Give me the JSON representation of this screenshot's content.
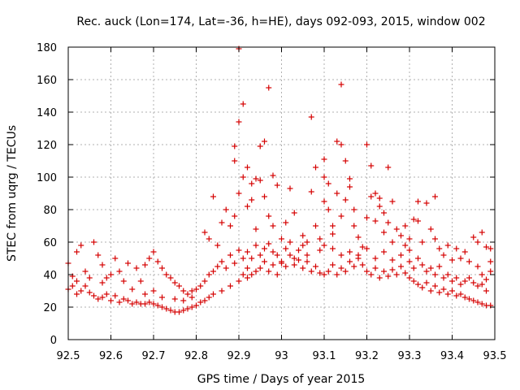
{
  "chart_data": {
    "type": "scatter",
    "title": "Rec. auck (Lon=174, Lat=-36, h=HE), days 092-093, 2015, window 002",
    "xlabel": "GPS time / Days of year 2015",
    "ylabel": "STEC from uqrg / TECUs",
    "xlim": [
      92.5,
      93.5
    ],
    "ylim": [
      0,
      180
    ],
    "xticks": [
      "92.5",
      "92.6",
      "92.7",
      "92.8",
      "92.9",
      "93",
      "93.1",
      "93.2",
      "93.3",
      "93.4",
      "93.5"
    ],
    "yticks": [
      "0",
      "20",
      "40",
      "60",
      "80",
      "100",
      "120",
      "140",
      "160",
      "180"
    ],
    "grid": true,
    "marker": "+",
    "color": "#d40000",
    "series": [
      {
        "name": "STEC",
        "points": [
          [
            92.5,
            47
          ],
          [
            92.51,
            39
          ],
          [
            92.52,
            54
          ],
          [
            92.53,
            58
          ],
          [
            92.54,
            42
          ],
          [
            92.56,
            60
          ],
          [
            92.57,
            52
          ],
          [
            92.58,
            46
          ],
          [
            92.59,
            38
          ],
          [
            92.61,
            50
          ],
          [
            92.62,
            42
          ],
          [
            92.64,
            47
          ],
          [
            92.66,
            44
          ],
          [
            92.67,
            36
          ],
          [
            92.68,
            46
          ],
          [
            92.69,
            50
          ],
          [
            92.7,
            54
          ],
          [
            92.71,
            48
          ],
          [
            92.72,
            44
          ],
          [
            92.73,
            40
          ],
          [
            92.74,
            38
          ],
          [
            92.75,
            35
          ],
          [
            92.76,
            33
          ],
          [
            92.77,
            30
          ],
          [
            92.78,
            28
          ],
          [
            92.79,
            30
          ],
          [
            92.8,
            31
          ],
          [
            92.5,
            31
          ],
          [
            92.51,
            33
          ],
          [
            92.52,
            28
          ],
          [
            92.53,
            30
          ],
          [
            92.54,
            33
          ],
          [
            92.55,
            29
          ],
          [
            92.56,
            27
          ],
          [
            92.57,
            25
          ],
          [
            92.58,
            26
          ],
          [
            92.59,
            28
          ],
          [
            92.6,
            24
          ],
          [
            92.61,
            27
          ],
          [
            92.62,
            23
          ],
          [
            92.63,
            25
          ],
          [
            92.64,
            24
          ],
          [
            92.65,
            22
          ],
          [
            92.66,
            23
          ],
          [
            92.67,
            22
          ],
          [
            92.68,
            22
          ],
          [
            92.69,
            23
          ],
          [
            92.7,
            22
          ],
          [
            92.71,
            21
          ],
          [
            92.72,
            20
          ],
          [
            92.73,
            19
          ],
          [
            92.74,
            18
          ],
          [
            92.75,
            17
          ],
          [
            92.76,
            17
          ],
          [
            92.77,
            18
          ],
          [
            92.78,
            19
          ],
          [
            92.79,
            20
          ],
          [
            92.8,
            21
          ],
          [
            92.81,
            23
          ],
          [
            92.82,
            24
          ],
          [
            92.83,
            26
          ],
          [
            92.84,
            28
          ],
          [
            92.86,
            30
          ],
          [
            92.88,
            33
          ],
          [
            92.9,
            36
          ],
          [
            92.92,
            38
          ],
          [
            92.52,
            36
          ],
          [
            92.55,
            38
          ],
          [
            92.58,
            35
          ],
          [
            92.6,
            40
          ],
          [
            92.63,
            36
          ],
          [
            92.65,
            31
          ],
          [
            92.68,
            28
          ],
          [
            92.7,
            30
          ],
          [
            92.72,
            26
          ],
          [
            92.75,
            25
          ],
          [
            92.77,
            24
          ],
          [
            92.79,
            26
          ],
          [
            92.81,
            33
          ],
          [
            92.82,
            36
          ],
          [
            92.83,
            40
          ],
          [
            92.84,
            42
          ],
          [
            92.85,
            45
          ],
          [
            92.86,
            48
          ],
          [
            92.87,
            44
          ],
          [
            92.88,
            52
          ],
          [
            92.89,
            47
          ],
          [
            92.9,
            55
          ],
          [
            92.91,
            50
          ],
          [
            92.92,
            54
          ],
          [
            92.93,
            50
          ],
          [
            92.94,
            58
          ],
          [
            92.95,
            52
          ],
          [
            92.96,
            56
          ],
          [
            92.97,
            59
          ],
          [
            92.98,
            54
          ],
          [
            92.82,
            66
          ],
          [
            92.83,
            62
          ],
          [
            92.84,
            88
          ],
          [
            92.85,
            58
          ],
          [
            92.86,
            72
          ],
          [
            92.87,
            80
          ],
          [
            92.88,
            70
          ],
          [
            92.89,
            76
          ],
          [
            92.89,
            119
          ],
          [
            92.89,
            110
          ],
          [
            92.9,
            134
          ],
          [
            92.9,
            179
          ],
          [
            92.9,
            90
          ],
          [
            92.91,
            100
          ],
          [
            92.91,
            145
          ],
          [
            92.92,
            82
          ],
          [
            92.92,
            106
          ],
          [
            92.93,
            86
          ],
          [
            92.93,
            96
          ],
          [
            92.94,
            99
          ],
          [
            92.94,
            68
          ],
          [
            92.95,
            98
          ],
          [
            92.95,
            119
          ],
          [
            92.96,
            122
          ],
          [
            92.96,
            88
          ],
          [
            92.97,
            155
          ],
          [
            92.97,
            76
          ],
          [
            92.98,
            101
          ],
          [
            92.98,
            70
          ],
          [
            92.99,
            95
          ],
          [
            92.99,
            52
          ],
          [
            93.0,
            62
          ],
          [
            93.0,
            48
          ],
          [
            93.01,
            72
          ],
          [
            93.01,
            56
          ],
          [
            93.02,
            93
          ],
          [
            93.02,
            60
          ],
          [
            93.03,
            78
          ],
          [
            93.03,
            50
          ],
          [
            93.04,
            55
          ],
          [
            93.05,
            64
          ],
          [
            93.05,
            58
          ],
          [
            93.06,
            60
          ],
          [
            93.06,
            52
          ],
          [
            93.07,
            137
          ],
          [
            93.07,
            91
          ],
          [
            93.08,
            106
          ],
          [
            93.08,
            70
          ],
          [
            93.09,
            62
          ],
          [
            93.09,
            55
          ],
          [
            93.1,
            111
          ],
          [
            93.1,
            100
          ],
          [
            93.1,
            85
          ],
          [
            93.11,
            80
          ],
          [
            93.11,
            96
          ],
          [
            93.12,
            70
          ],
          [
            93.12,
            65
          ],
          [
            93.13,
            122
          ],
          [
            93.13,
            90
          ],
          [
            93.14,
            157
          ],
          [
            93.14,
            120
          ],
          [
            93.14,
            76
          ],
          [
            93.15,
            86
          ],
          [
            93.15,
            110
          ],
          [
            93.16,
            99
          ],
          [
            93.16,
            94
          ],
          [
            93.17,
            80
          ],
          [
            93.17,
            70
          ],
          [
            93.18,
            63
          ],
          [
            93.19,
            57
          ],
          [
            93.2,
            120
          ],
          [
            93.2,
            75
          ],
          [
            93.21,
            88
          ],
          [
            93.21,
            107
          ],
          [
            93.22,
            90
          ],
          [
            93.22,
            73
          ],
          [
            93.23,
            87
          ],
          [
            93.23,
            82
          ],
          [
            93.24,
            78
          ],
          [
            93.24,
            66
          ],
          [
            93.25,
            106
          ],
          [
            93.25,
            72
          ],
          [
            93.26,
            85
          ],
          [
            93.26,
            60
          ],
          [
            93.27,
            68
          ],
          [
            93.28,
            64
          ],
          [
            93.29,
            70
          ],
          [
            93.29,
            58
          ],
          [
            93.3,
            62
          ],
          [
            93.3,
            55
          ],
          [
            93.31,
            74
          ],
          [
            93.32,
            85
          ],
          [
            93.32,
            73
          ],
          [
            93.33,
            60
          ],
          [
            93.34,
            84
          ],
          [
            93.35,
            68
          ],
          [
            93.36,
            88
          ],
          [
            93.36,
            62
          ],
          [
            93.37,
            56
          ],
          [
            93.38,
            52
          ],
          [
            93.39,
            58
          ],
          [
            93.4,
            49
          ],
          [
            93.41,
            56
          ],
          [
            93.42,
            50
          ],
          [
            93.43,
            54
          ],
          [
            93.44,
            48
          ],
          [
            93.45,
            63
          ],
          [
            93.46,
            60
          ],
          [
            93.47,
            66
          ],
          [
            93.48,
            57
          ],
          [
            93.0,
            47
          ],
          [
            93.01,
            45
          ],
          [
            93.02,
            52
          ],
          [
            93.03,
            46
          ],
          [
            93.04,
            49
          ],
          [
            93.05,
            44
          ],
          [
            93.06,
            48
          ],
          [
            93.07,
            42
          ],
          [
            93.08,
            45
          ],
          [
            93.09,
            41
          ],
          [
            93.1,
            40
          ],
          [
            93.11,
            42
          ],
          [
            93.12,
            46
          ],
          [
            93.13,
            40
          ],
          [
            93.14,
            44
          ],
          [
            93.15,
            42
          ],
          [
            93.16,
            48
          ],
          [
            93.17,
            45
          ],
          [
            93.18,
            50
          ],
          [
            93.19,
            46
          ],
          [
            93.2,
            42
          ],
          [
            93.21,
            40
          ],
          [
            93.22,
            44
          ],
          [
            93.23,
            38
          ],
          [
            93.24,
            42
          ],
          [
            93.25,
            39
          ],
          [
            93.26,
            43
          ],
          [
            93.27,
            40
          ],
          [
            93.28,
            45
          ],
          [
            93.29,
            41
          ],
          [
            93.3,
            38
          ],
          [
            93.31,
            36
          ],
          [
            93.32,
            34
          ],
          [
            93.33,
            32
          ],
          [
            93.34,
            35
          ],
          [
            93.35,
            30
          ],
          [
            93.36,
            33
          ],
          [
            93.37,
            29
          ],
          [
            93.38,
            31
          ],
          [
            93.39,
            28
          ],
          [
            93.4,
            30
          ],
          [
            93.41,
            27
          ],
          [
            93.42,
            28
          ],
          [
            93.43,
            26
          ],
          [
            93.44,
            25
          ],
          [
            93.45,
            24
          ],
          [
            93.46,
            23
          ],
          [
            93.47,
            22
          ],
          [
            93.48,
            21
          ],
          [
            93.49,
            21
          ],
          [
            93.3,
            48
          ],
          [
            93.31,
            44
          ],
          [
            93.32,
            50
          ],
          [
            93.33,
            46
          ],
          [
            93.34,
            42
          ],
          [
            93.35,
            44
          ],
          [
            93.36,
            40
          ],
          [
            93.37,
            45
          ],
          [
            93.38,
            38
          ],
          [
            93.39,
            40
          ],
          [
            93.4,
            36
          ],
          [
            93.41,
            38
          ],
          [
            93.42,
            34
          ],
          [
            93.43,
            36
          ],
          [
            93.44,
            38
          ],
          [
            93.45,
            35
          ],
          [
            93.46,
            33
          ],
          [
            93.47,
            40
          ],
          [
            93.48,
            37
          ],
          [
            93.49,
            42
          ],
          [
            93.1,
            58
          ],
          [
            93.12,
            56
          ],
          [
            93.14,
            52
          ],
          [
            93.16,
            54
          ],
          [
            93.18,
            52
          ],
          [
            93.2,
            56
          ],
          [
            93.22,
            50
          ],
          [
            93.24,
            54
          ],
          [
            93.26,
            49
          ],
          [
            93.28,
            52
          ],
          [
            92.95,
            44
          ],
          [
            92.96,
            48
          ],
          [
            92.97,
            42
          ],
          [
            92.98,
            46
          ],
          [
            92.99,
            40
          ],
          [
            92.93,
            40
          ],
          [
            92.92,
            44
          ],
          [
            92.91,
            40
          ],
          [
            92.94,
            42
          ],
          [
            93.49,
            56
          ],
          [
            93.49,
            48
          ],
          [
            93.48,
            30
          ],
          [
            93.47,
            34
          ],
          [
            93.46,
            45
          ]
        ]
      }
    ]
  }
}
